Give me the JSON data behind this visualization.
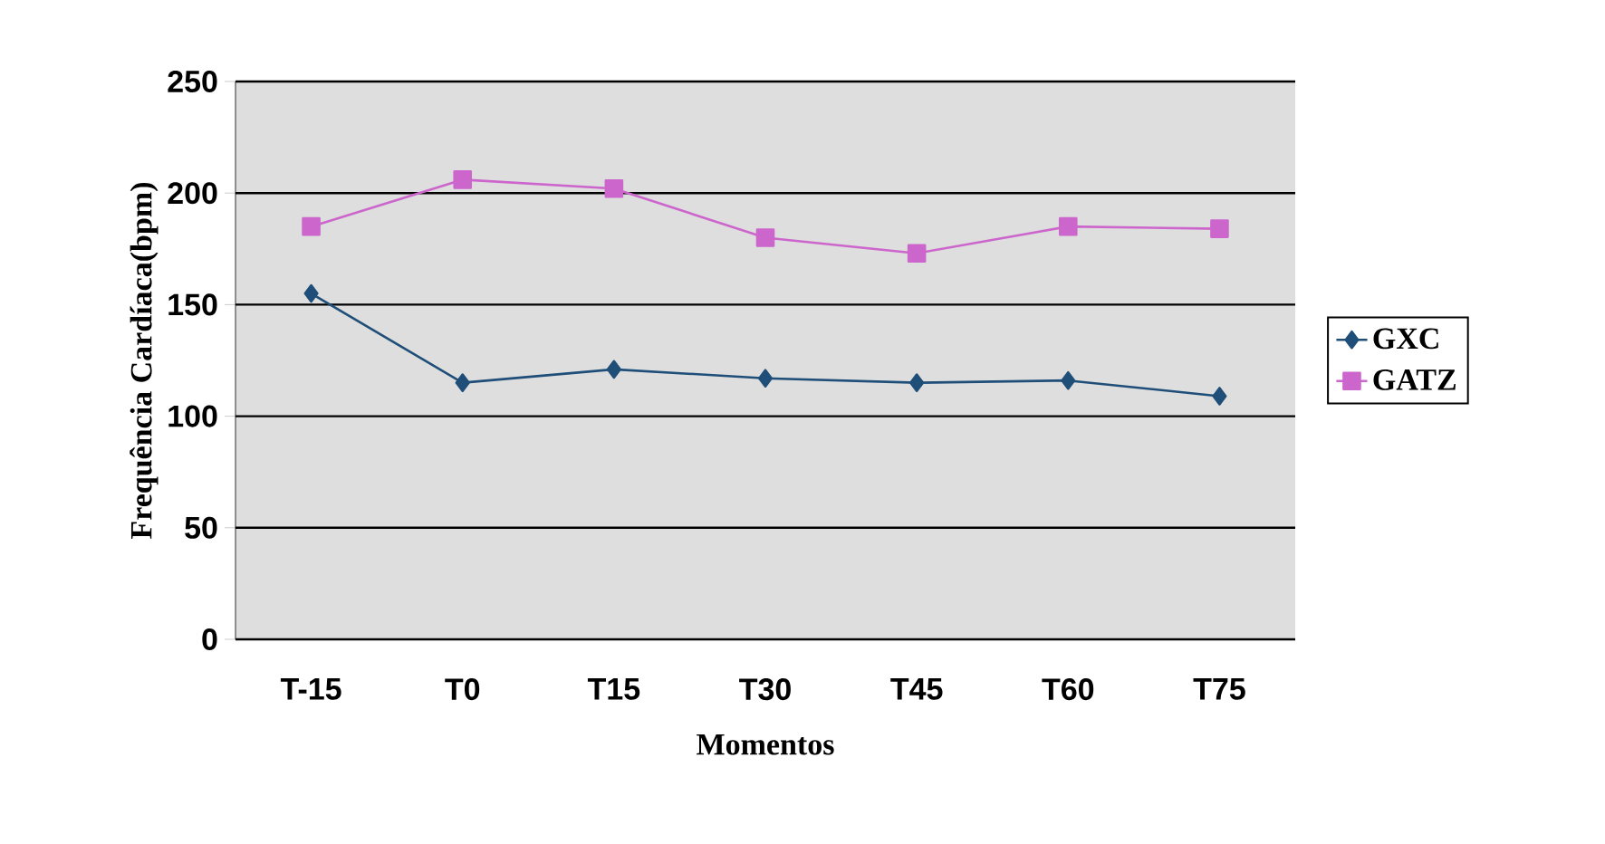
{
  "chart_data": {
    "type": "line",
    "xlabel": "Momentos",
    "ylabel": "Frequência Cardíaca(bpm)",
    "categories": [
      "T-15",
      "T0",
      "T15",
      "T30",
      "T45",
      "T60",
      "T75"
    ],
    "series": [
      {
        "name": "GXC",
        "color": "#1f4e79",
        "marker": "diamond",
        "values": [
          155,
          115,
          121,
          117,
          115,
          116,
          109
        ]
      },
      {
        "name": "GATZ",
        "color": "#cc66cc",
        "marker": "square",
        "values": [
          185,
          206,
          202,
          180,
          173,
          185,
          184
        ]
      }
    ],
    "ylim": [
      0,
      250
    ],
    "yticks": [
      0,
      50,
      100,
      150,
      200,
      250
    ],
    "grid": "y",
    "legend": "right"
  }
}
